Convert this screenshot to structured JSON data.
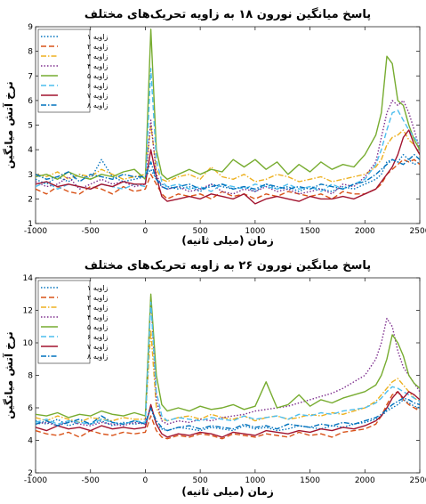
{
  "chart_data": [
    {
      "type": "line",
      "title": "پاسخ میانگین نورون ۱۸ به زاویه تحریک‌های مختلف",
      "xlabel": "زمان (میلی ثانیه)",
      "ylabel": "نرخ آتش میانگین",
      "xlim": [
        -1000,
        2500
      ],
      "ylim": [
        1,
        9
      ],
      "xticks": [
        -1000,
        -500,
        0,
        500,
        1000,
        1500,
        2000,
        2500
      ],
      "yticks": [
        1,
        2,
        3,
        4,
        5,
        6,
        7,
        8,
        9
      ],
      "grid": false,
      "legend_position": "top-left",
      "x": [
        -1000,
        -900,
        -800,
        -700,
        -600,
        -500,
        -400,
        -300,
        -200,
        -100,
        0,
        50,
        100,
        150,
        200,
        300,
        400,
        500,
        600,
        700,
        800,
        900,
        1000,
        1100,
        1200,
        1300,
        1400,
        1500,
        1600,
        1700,
        1800,
        1900,
        2000,
        2100,
        2150,
        2200,
        2250,
        2300,
        2350,
        2400,
        2450,
        2500
      ],
      "series": [
        {
          "name": "زاویه ۱",
          "color": "#0072BD",
          "dash": "1.5,2",
          "values": [
            2.8,
            2.6,
            2.9,
            2.7,
            3.0,
            2.8,
            3.6,
            2.9,
            2.7,
            2.8,
            2.9,
            3.2,
            2.8,
            2.6,
            2.5,
            2.4,
            2.5,
            2.3,
            2.6,
            2.5,
            2.4,
            2.5,
            2.3,
            2.6,
            2.4,
            2.5,
            2.3,
            2.5,
            2.4,
            2.3,
            2.5,
            2.4,
            2.6,
            2.8,
            3.0,
            3.5,
            3.6,
            3.5,
            3.8,
            3.6,
            3.4,
            3.5
          ]
        },
        {
          "name": "زاویه ۲",
          "color": "#D95319",
          "dash": "6,3",
          "values": [
            2.4,
            2.2,
            2.5,
            2.3,
            2.2,
            2.5,
            2.4,
            2.2,
            2.5,
            2.3,
            2.4,
            3.0,
            2.6,
            2.2,
            2.0,
            2.2,
            2.1,
            2.2,
            2.0,
            2.3,
            2.1,
            2.2,
            2.0,
            2.2,
            2.1,
            2.3,
            2.2,
            2.1,
            2.2,
            2.0,
            2.3,
            2.2,
            2.2,
            2.4,
            2.6,
            3.0,
            3.2,
            3.4,
            3.6,
            3.5,
            3.6,
            3.4
          ]
        },
        {
          "name": "زاویه ۳",
          "color": "#EDB120",
          "dash": "6,2,1.5,2",
          "values": [
            3.0,
            2.9,
            3.1,
            2.8,
            3.0,
            2.9,
            3.2,
            3.0,
            2.8,
            2.9,
            3.0,
            5.0,
            3.2,
            2.8,
            2.7,
            2.9,
            3.0,
            2.8,
            3.3,
            2.9,
            2.8,
            3.0,
            2.7,
            2.8,
            3.0,
            2.9,
            2.7,
            2.8,
            2.9,
            2.7,
            2.8,
            2.9,
            3.0,
            3.3,
            3.6,
            4.2,
            4.5,
            4.6,
            4.8,
            4.4,
            4.2,
            3.8
          ]
        },
        {
          "name": "زاویه ۴",
          "color": "#7E2F8E",
          "dash": "1.5,2",
          "values": [
            2.7,
            2.5,
            2.6,
            2.9,
            2.4,
            2.6,
            2.8,
            2.6,
            2.7,
            2.5,
            2.6,
            5.2,
            3.0,
            2.5,
            2.4,
            2.5,
            2.3,
            2.4,
            2.6,
            2.3,
            2.2,
            2.4,
            2.3,
            2.5,
            2.3,
            2.4,
            2.2,
            2.3,
            2.4,
            2.2,
            2.6,
            2.5,
            2.9,
            3.5,
            4.5,
            5.5,
            6.0,
            5.8,
            6.0,
            5.5,
            4.8,
            4.0
          ]
        },
        {
          "name": "زاویه ۵",
          "color": "#77AC30",
          "dash": "",
          "values": [
            2.9,
            3.0,
            2.8,
            3.1,
            2.9,
            2.8,
            3.0,
            2.9,
            3.1,
            3.2,
            2.8,
            8.9,
            4.0,
            3.0,
            2.8,
            3.0,
            3.2,
            3.0,
            3.2,
            3.1,
            3.6,
            3.3,
            3.6,
            3.2,
            3.5,
            3.0,
            3.4,
            3.1,
            3.5,
            3.2,
            3.4,
            3.3,
            3.8,
            4.6,
            5.5,
            7.8,
            7.5,
            6.0,
            5.8,
            5.0,
            4.4,
            4.0
          ]
        },
        {
          "name": "زاویه ۶",
          "color": "#4DBEEE",
          "dash": "6,3",
          "values": [
            2.5,
            2.7,
            2.4,
            2.6,
            2.5,
            2.4,
            2.6,
            2.5,
            2.4,
            2.6,
            2.5,
            7.3,
            3.6,
            2.7,
            2.5,
            2.6,
            2.4,
            2.5,
            2.3,
            2.6,
            2.5,
            2.4,
            2.6,
            2.5,
            2.4,
            2.6,
            2.4,
            2.5,
            2.3,
            2.6,
            2.4,
            2.6,
            2.8,
            3.4,
            4.0,
            4.8,
            5.5,
            5.6,
            5.2,
            4.8,
            4.5,
            4.2
          ]
        },
        {
          "name": "زاویه ۷",
          "color": "#A2142F",
          "dash": "",
          "values": [
            2.6,
            2.7,
            2.5,
            2.6,
            2.5,
            2.4,
            2.6,
            2.5,
            2.7,
            2.6,
            2.6,
            4.0,
            2.9,
            2.1,
            1.9,
            2.0,
            2.1,
            2.0,
            2.2,
            2.1,
            2.0,
            2.2,
            1.8,
            2.0,
            2.1,
            2.0,
            1.9,
            2.1,
            2.0,
            2.0,
            2.1,
            2.0,
            2.2,
            2.4,
            2.7,
            3.0,
            3.3,
            3.8,
            4.5,
            4.8,
            4.2,
            3.8
          ]
        },
        {
          "name": "زاویه ۸",
          "color": "#0072BD",
          "dash": "6,2,1.5,2",
          "values": [
            3.0,
            2.8,
            2.9,
            3.1,
            2.7,
            3.0,
            2.9,
            2.8,
            3.0,
            2.9,
            2.9,
            3.5,
            2.8,
            2.5,
            2.4,
            2.5,
            2.6,
            2.4,
            2.5,
            2.6,
            2.4,
            2.5,
            2.4,
            2.6,
            2.5,
            2.4,
            2.5,
            2.4,
            2.6,
            2.5,
            2.4,
            2.6,
            2.7,
            3.0,
            3.2,
            3.4,
            3.6,
            3.5,
            3.4,
            3.6,
            3.8,
            3.6
          ]
        }
      ]
    },
    {
      "type": "line",
      "title": "پاسخ میانگین نورون ۲۶ به زاویه تحریک‌های مختلف",
      "xlabel": "زمان (میلی ثانیه)",
      "ylabel": "نرخ آتش میانگین",
      "xlim": [
        -1000,
        2500
      ],
      "ylim": [
        2,
        14
      ],
      "xticks": [
        -1000,
        -500,
        0,
        500,
        1000,
        1500,
        2000,
        2500
      ],
      "yticks": [
        2,
        4,
        6,
        8,
        10,
        12,
        14
      ],
      "grid": false,
      "legend_position": "top-left",
      "x": [
        -1000,
        -900,
        -800,
        -700,
        -600,
        -500,
        -400,
        -300,
        -200,
        -100,
        0,
        50,
        100,
        150,
        200,
        300,
        400,
        500,
        600,
        700,
        800,
        900,
        1000,
        1100,
        1200,
        1300,
        1400,
        1500,
        1600,
        1700,
        1800,
        1900,
        2000,
        2100,
        2150,
        2200,
        2250,
        2300,
        2350,
        2400,
        2450,
        2500
      ],
      "series": [
        {
          "name": "زاویه ۱",
          "color": "#0072BD",
          "dash": "1.5,2",
          "values": [
            5.2,
            5.0,
            5.3,
            4.9,
            5.1,
            5.0,
            5.2,
            4.9,
            5.1,
            5.0,
            5.1,
            6.0,
            5.0,
            4.7,
            4.6,
            4.8,
            4.7,
            4.6,
            4.8,
            4.7,
            4.6,
            4.9,
            4.7,
            4.8,
            4.6,
            4.7,
            4.9,
            4.8,
            4.7,
            4.9,
            4.8,
            5.0,
            5.1,
            5.3,
            5.5,
            5.8,
            6.0,
            6.2,
            6.5,
            6.3,
            6.1,
            6.0
          ]
        },
        {
          "name": "زاویه ۲",
          "color": "#D95319",
          "dash": "6,3",
          "values": [
            4.6,
            4.4,
            4.3,
            4.5,
            4.2,
            4.6,
            4.4,
            4.3,
            4.5,
            4.4,
            4.5,
            5.5,
            4.6,
            4.2,
            4.1,
            4.3,
            4.2,
            4.4,
            4.3,
            4.1,
            4.4,
            4.3,
            4.2,
            4.4,
            4.3,
            4.2,
            4.5,
            4.3,
            4.4,
            4.2,
            4.5,
            4.6,
            4.7,
            5.0,
            5.5,
            6.2,
            6.8,
            7.0,
            6.5,
            6.2,
            6.0,
            5.8
          ]
        },
        {
          "name": "زاویه ۳",
          "color": "#EDB120",
          "dash": "6,2,1.5,2",
          "values": [
            5.4,
            5.2,
            5.5,
            5.3,
            5.1,
            5.4,
            5.3,
            5.2,
            5.4,
            5.3,
            5.3,
            10.8,
            6.0,
            5.3,
            5.2,
            5.4,
            5.5,
            5.3,
            5.6,
            5.4,
            5.3,
            5.5,
            5.2,
            5.4,
            5.5,
            5.3,
            5.4,
            5.6,
            5.5,
            5.7,
            5.6,
            5.8,
            6.0,
            6.4,
            6.8,
            7.2,
            7.6,
            7.8,
            7.4,
            7.0,
            6.6,
            6.4
          ]
        },
        {
          "name": "زاویه ۴",
          "color": "#7E2F8E",
          "dash": "1.5,2",
          "values": [
            5.0,
            5.1,
            4.9,
            5.2,
            5.0,
            4.9,
            5.1,
            5.0,
            4.9,
            5.1,
            5.0,
            12.8,
            6.5,
            5.2,
            5.0,
            5.2,
            5.1,
            5.3,
            5.2,
            5.4,
            5.5,
            5.6,
            5.8,
            5.9,
            6.0,
            6.1,
            6.3,
            6.5,
            6.7,
            6.9,
            7.2,
            7.6,
            8.0,
            9.0,
            10.0,
            11.5,
            11.0,
            9.5,
            8.5,
            8.0,
            7.5,
            7.0
          ]
        },
        {
          "name": "زاویه ۵",
          "color": "#77AC30",
          "dash": "",
          "values": [
            5.6,
            5.5,
            5.7,
            5.4,
            5.6,
            5.5,
            5.8,
            5.6,
            5.5,
            5.7,
            5.5,
            13.0,
            8.0,
            6.2,
            5.8,
            6.0,
            5.8,
            6.1,
            5.9,
            6.0,
            6.2,
            5.9,
            6.1,
            7.6,
            6.0,
            6.2,
            6.8,
            6.1,
            6.5,
            6.3,
            6.6,
            6.8,
            7.0,
            7.4,
            8.0,
            9.0,
            10.5,
            10.0,
            9.2,
            8.0,
            7.5,
            7.2
          ]
        },
        {
          "name": "زاویه ۶",
          "color": "#4DBEEE",
          "dash": "6,3",
          "values": [
            5.1,
            5.3,
            5.0,
            5.2,
            5.1,
            5.0,
            5.3,
            5.1,
            5.0,
            5.2,
            5.1,
            12.5,
            7.0,
            5.5,
            5.2,
            5.4,
            5.3,
            5.2,
            5.4,
            5.3,
            5.2,
            5.5,
            5.3,
            5.4,
            5.5,
            5.3,
            5.6,
            5.5,
            5.7,
            5.6,
            5.8,
            5.9,
            6.0,
            6.3,
            6.6,
            7.0,
            7.3,
            7.2,
            7.0,
            6.8,
            6.6,
            6.4
          ]
        },
        {
          "name": "زاویه ۷",
          "color": "#A2142F",
          "dash": "",
          "values": [
            4.8,
            4.6,
            4.9,
            4.7,
            4.8,
            4.6,
            4.9,
            4.7,
            4.8,
            4.7,
            4.8,
            6.2,
            5.0,
            4.4,
            4.2,
            4.4,
            4.3,
            4.5,
            4.4,
            4.2,
            4.5,
            4.4,
            4.3,
            4.6,
            4.5,
            4.4,
            4.6,
            4.5,
            4.7,
            4.6,
            4.8,
            4.7,
            4.9,
            5.2,
            5.5,
            6.0,
            6.6,
            7.0,
            6.6,
            7.0,
            6.8,
            6.5
          ]
        },
        {
          "name": "زاویه ۸",
          "color": "#0072BD",
          "dash": "6,2,1.5,2",
          "values": [
            5.0,
            5.2,
            4.9,
            5.1,
            5.3,
            5.0,
            5.5,
            5.1,
            5.0,
            5.2,
            5.0,
            6.0,
            5.2,
            4.8,
            4.6,
            4.8,
            4.9,
            4.7,
            4.9,
            4.8,
            4.7,
            5.0,
            4.8,
            4.9,
            4.7,
            5.0,
            4.9,
            4.8,
            5.0,
            4.9,
            5.1,
            5.0,
            5.2,
            5.4,
            5.6,
            5.9,
            6.2,
            6.4,
            6.6,
            6.5,
            6.3,
            6.2
          ]
        }
      ]
    }
  ]
}
